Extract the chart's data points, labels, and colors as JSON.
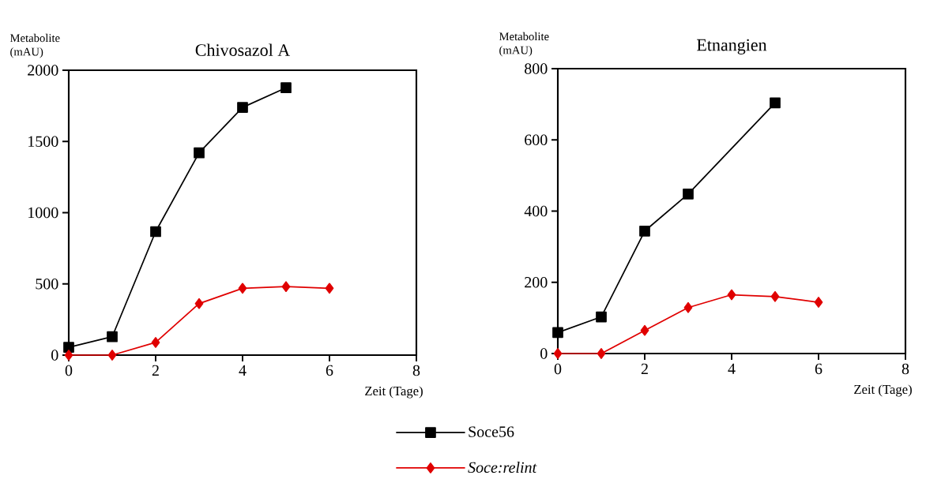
{
  "chart_data": [
    {
      "type": "line",
      "title": "Chivosazol A",
      "ylabel": "Metabolite (mAU)",
      "xlabel": "Zeit (Tage)",
      "x": [
        0,
        1,
        2,
        3,
        4,
        5,
        6
      ],
      "xlim": [
        0,
        8
      ],
      "xticks": [
        0,
        2,
        4,
        6,
        8
      ],
      "ylim": [
        0,
        2000
      ],
      "yticks": [
        0,
        500,
        1000,
        1500,
        2000
      ],
      "grid": false,
      "legend": "bottom",
      "line_style": "solid",
      "series": [
        {
          "name": "Soce56",
          "color": "#000000",
          "marker": "square",
          "values": [
            55,
            129,
            867,
            1420,
            1739,
            1877,
            null
          ]
        },
        {
          "name": "*Soce:relint*",
          "color": "#e00000",
          "marker": "diamond",
          "values": [
            0,
            0,
            89,
            362,
            469,
            481,
            469
          ]
        }
      ]
    },
    {
      "type": "line",
      "title": "Etnangien",
      "ylabel": "Metabolite (mAU)",
      "xlabel": "Zeit (Tage)",
      "x": [
        0,
        1,
        2,
        3,
        4,
        5,
        6
      ],
      "xlim": [
        0,
        8
      ],
      "xticks": [
        0,
        2,
        4,
        6,
        8
      ],
      "ylim": [
        0,
        800
      ],
      "yticks": [
        0,
        200,
        400,
        600,
        800
      ],
      "grid": false,
      "legend": false,
      "line_style": "solid",
      "series": [
        {
          "color": "#000000",
          "marker": "square",
          "values": [
            59,
            103,
            344,
            448,
            null,
            704,
            null
          ]
        },
        {
          "color": "#e00000",
          "marker": "diamond",
          "values": [
            0,
            0,
            65,
            129,
            165,
            160,
            144
          ]
        }
      ]
    }
  ]
}
